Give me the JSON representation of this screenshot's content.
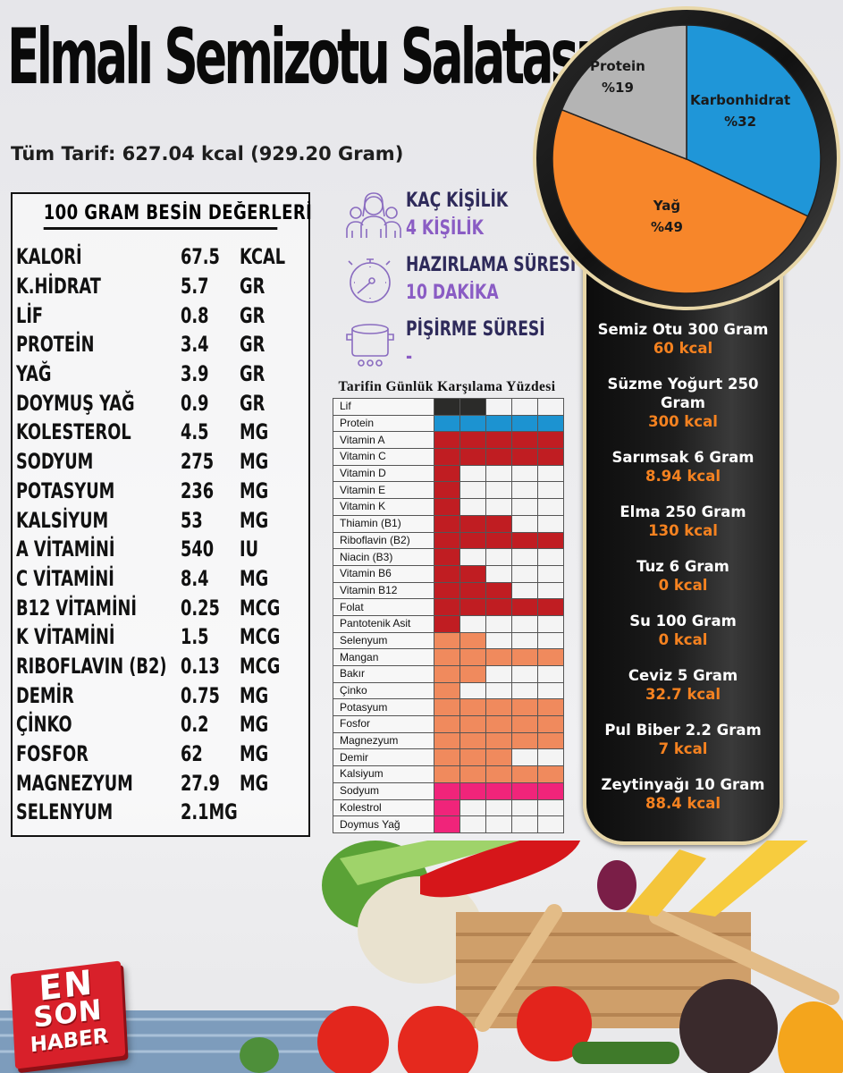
{
  "header": {
    "title": "Elmalı Semizotu Salatası",
    "total": "Tüm Tarif: 627.04 kcal (929.20 Gram)"
  },
  "nutrition": {
    "title": "100 GRAM BESİN DEĞERLERİ",
    "rows": [
      {
        "label": "KALORİ",
        "value": "67.5",
        "unit": "KCAL"
      },
      {
        "label": "K.HİDRAT",
        "value": "5.7",
        "unit": "GR"
      },
      {
        "label": "LİF",
        "value": "0.8",
        "unit": "GR"
      },
      {
        "label": "PROTEİN",
        "value": "3.4",
        "unit": "GR"
      },
      {
        "label": "YAĞ",
        "value": "3.9",
        "unit": "GR"
      },
      {
        "label": "DOYMUŞ YAĞ",
        "value": "0.9",
        "unit": "GR"
      },
      {
        "label": "KOLESTEROL",
        "value": "4.5",
        "unit": "MG"
      },
      {
        "label": "SODYUM",
        "value": "275",
        "unit": "MG"
      },
      {
        "label": "POTASYUM",
        "value": "236",
        "unit": "MG"
      },
      {
        "label": "KALSİYUM",
        "value": "53",
        "unit": "MG"
      },
      {
        "label": "A VİTAMİNİ",
        "value": "540",
        "unit": "IU"
      },
      {
        "label": "C VİTAMİNİ",
        "value": "8.4",
        "unit": "MG"
      },
      {
        "label": "B12 VİTAMİNİ",
        "value": "0.25",
        "unit": "MCG"
      },
      {
        "label": "K VİTAMİNİ",
        "value": "1.5",
        "unit": "MCG"
      },
      {
        "label": "RIBOFLAVIN (B2)",
        "value": "0.13",
        "unit": "MCG"
      },
      {
        "label": "DEMİR",
        "value": "0.75",
        "unit": "MG"
      },
      {
        "label": "ÇİNKO",
        "value": "0.2",
        "unit": "MG"
      },
      {
        "label": "FOSFOR",
        "value": "62",
        "unit": "MG"
      },
      {
        "label": "MAGNEZYUM",
        "value": "27.9",
        "unit": "MG"
      },
      {
        "label": "SELENYUM",
        "value": "2.1MG",
        "unit": ""
      }
    ]
  },
  "info": {
    "servings": {
      "label": "KAÇ KİŞİLİK",
      "value": "4 KİŞİLİK",
      "icon": "people-icon"
    },
    "prep": {
      "label": "HAZIRLAMA SÜRESİ",
      "value": "10 DAKİKA",
      "icon": "stopwatch-icon"
    },
    "cook": {
      "label": "PİŞİRME SÜRESİ",
      "value": "-",
      "icon": "pot-icon"
    }
  },
  "macro_pie": {
    "slices": [
      {
        "label": "Karbonhidrat",
        "pct": "%32",
        "value": 32,
        "color": "#1f96d8"
      },
      {
        "label": "Yağ",
        "pct": "%49",
        "value": 49,
        "color": "#f7862a"
      },
      {
        "label": "Protein",
        "pct": "%19",
        "value": 19,
        "color": "#b4b4b4"
      }
    ]
  },
  "ingredients": [
    {
      "name": "Semiz Otu 300 Gram",
      "kcal": "60 kcal"
    },
    {
      "name": "Süzme Yoğurt 250 Gram",
      "kcal": "300 kcal"
    },
    {
      "name": "Sarımsak 6 Gram",
      "kcal": "8.94 kcal"
    },
    {
      "name": "Elma 250 Gram",
      "kcal": "130 kcal"
    },
    {
      "name": "Tuz 6 Gram",
      "kcal": "0 kcal"
    },
    {
      "name": "Su 100 Gram",
      "kcal": "0 kcal"
    },
    {
      "name": "Ceviz 5 Gram",
      "kcal": "32.7 kcal"
    },
    {
      "name": "Pul Biber 2.2 Gram",
      "kcal": "7 kcal"
    },
    {
      "name": "Zeytinyağı 10 Gram",
      "kcal": "88.4 kcal"
    }
  ],
  "daily": {
    "title": "Tarifin Günlük Karşılama Yüzdesi",
    "axis": [
      "%20",
      "%60",
      "%100"
    ],
    "colors": {
      "dark": "#2b2b29",
      "blue": "#1c93d1",
      "red": "#c01d22",
      "salmon": "#f08a5d",
      "pink": "#f0247a"
    },
    "rows": [
      {
        "label": "Lif",
        "filled": 2,
        "color": "dark"
      },
      {
        "label": "Protein",
        "filled": 5,
        "color": "blue"
      },
      {
        "label": "Vitamin A",
        "filled": 5,
        "color": "red"
      },
      {
        "label": "Vitamin C",
        "filled": 5,
        "color": "red"
      },
      {
        "label": "Vitamin D",
        "filled": 1,
        "color": "red"
      },
      {
        "label": "Vitamin E",
        "filled": 1,
        "color": "red"
      },
      {
        "label": "Vitamin K",
        "filled": 1,
        "color": "red"
      },
      {
        "label": "Thiamin (B1)",
        "filled": 3,
        "color": "red"
      },
      {
        "label": "Riboflavin (B2)",
        "filled": 5,
        "color": "red"
      },
      {
        "label": "Niacin (B3)",
        "filled": 1,
        "color": "red"
      },
      {
        "label": "Vitamin B6",
        "filled": 2,
        "color": "red"
      },
      {
        "label": "Vitamin B12",
        "filled": 3,
        "color": "red"
      },
      {
        "label": "Folat",
        "filled": 5,
        "color": "red"
      },
      {
        "label": "Pantotenik Asit",
        "filled": 1,
        "color": "red"
      },
      {
        "label": "Selenyum",
        "filled": 2,
        "color": "salmon"
      },
      {
        "label": "Mangan",
        "filled": 5,
        "color": "salmon"
      },
      {
        "label": "Bakır",
        "filled": 2,
        "color": "salmon"
      },
      {
        "label": "Çinko",
        "filled": 1,
        "color": "salmon"
      },
      {
        "label": "Potasyum",
        "filled": 5,
        "color": "salmon"
      },
      {
        "label": "Fosfor",
        "filled": 5,
        "color": "salmon"
      },
      {
        "label": "Magnezyum",
        "filled": 5,
        "color": "salmon"
      },
      {
        "label": "Demir",
        "filled": 3,
        "color": "salmon"
      },
      {
        "label": "Kalsiyum",
        "filled": 5,
        "color": "salmon"
      },
      {
        "label": "Sodyum",
        "filled": 5,
        "color": "pink"
      },
      {
        "label": "Kolestrol",
        "filled": 1,
        "color": "pink"
      },
      {
        "label": "Doymus Yağ",
        "filled": 1,
        "color": "pink"
      }
    ]
  },
  "logo": {
    "line1": "EN",
    "line2": "SON",
    "line3": "HABER"
  },
  "chart_data": [
    {
      "type": "pie",
      "title": "",
      "categories": [
        "Karbonhidrat",
        "Yağ",
        "Protein"
      ],
      "values": [
        32,
        49,
        19
      ],
      "labels": [
        "%32",
        "%49",
        "%19"
      ]
    },
    {
      "type": "bar",
      "title": "Tarifin Günlük Karşılama Yüzdesi",
      "orientation": "horizontal",
      "categories": [
        "Lif",
        "Protein",
        "Vitamin A",
        "Vitamin C",
        "Vitamin D",
        "Vitamin E",
        "Vitamin K",
        "Thiamin (B1)",
        "Riboflavin (B2)",
        "Niacin (B3)",
        "Vitamin B6",
        "Vitamin B12",
        "Folat",
        "Pantotenik Asit",
        "Selenyum",
        "Mangan",
        "Bakır",
        "Çinko",
        "Potasyum",
        "Fosfor",
        "Magnezyum",
        "Demir",
        "Kalsiyum",
        "Sodyum",
        "Kolestrol",
        "Doymus Yağ"
      ],
      "values": [
        40,
        100,
        100,
        100,
        20,
        20,
        20,
        60,
        100,
        20,
        40,
        60,
        100,
        20,
        40,
        100,
        40,
        20,
        100,
        100,
        100,
        60,
        100,
        100,
        20,
        20
      ],
      "xticks": [
        "%20",
        "%60",
        "%100"
      ],
      "xlim": [
        0,
        100
      ],
      "grid": true
    }
  ]
}
